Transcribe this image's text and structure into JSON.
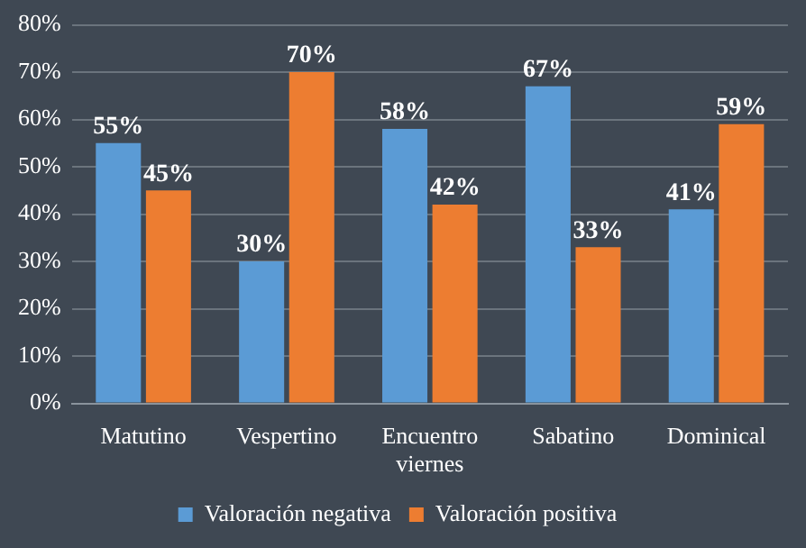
{
  "chart_data": {
    "type": "bar",
    "categories": [
      "Matutino",
      "Vespertino",
      "Encuentro viernes",
      "Sabatino",
      "Dominical"
    ],
    "series": [
      {
        "name": "Valoración negativa",
        "color": "#5b9bd5",
        "values": [
          55,
          30,
          58,
          67,
          41
        ],
        "value_labels": [
          "55%",
          "30%",
          "58%",
          "67%",
          "41%"
        ]
      },
      {
        "name": "Valoración positiva",
        "color": "#ed7d31",
        "values": [
          45,
          70,
          42,
          33,
          59
        ],
        "value_labels": [
          "45%",
          "70%",
          "42%",
          "33%",
          "59%"
        ]
      }
    ],
    "ylim": [
      0,
      80
    ],
    "yticks": [
      {
        "value": 0,
        "label": "0%"
      },
      {
        "value": 10,
        "label": "10%"
      },
      {
        "value": 20,
        "label": "20%"
      },
      {
        "value": 30,
        "label": "30%"
      },
      {
        "value": 40,
        "label": "40%"
      },
      {
        "value": 50,
        "label": "50%"
      },
      {
        "value": 60,
        "label": "60%"
      },
      {
        "value": 70,
        "label": "70%"
      },
      {
        "value": 80,
        "label": "80%"
      }
    ],
    "grid": "y",
    "legend": "bottom"
  }
}
